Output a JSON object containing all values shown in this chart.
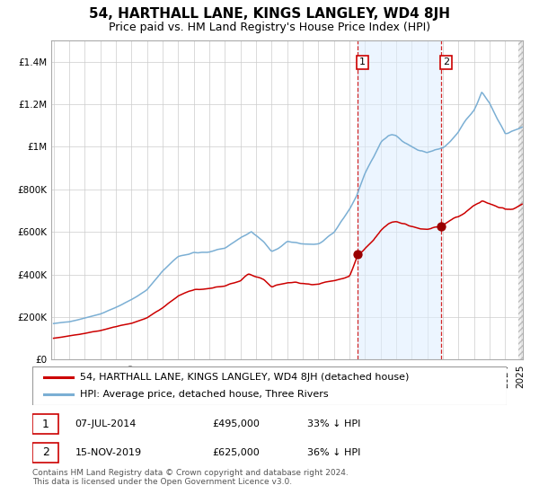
{
  "title": "54, HARTHALL LANE, KINGS LANGLEY, WD4 8JH",
  "subtitle": "Price paid vs. HM Land Registry's House Price Index (HPI)",
  "ylim": [
    0,
    1500000
  ],
  "yticks": [
    0,
    200000,
    400000,
    600000,
    800000,
    1000000,
    1200000,
    1400000
  ],
  "ytick_labels": [
    "£0",
    "£200K",
    "£400K",
    "£600K",
    "£800K",
    "£1M",
    "£1.2M",
    "£1.4M"
  ],
  "date_start": 1995.0,
  "date_end": 2025.08,
  "purchase1_date": 2014.52,
  "purchase1_price": 495000,
  "purchase2_date": 2019.88,
  "purchase2_price": 625000,
  "hpi_color": "#7bafd4",
  "price_color": "#cc0000",
  "purchase_dot_color": "#990000",
  "shaded_color": "#ddeeff",
  "grid_color": "#cccccc",
  "legend_label1": "54, HARTHALL LANE, KINGS LANGLEY, WD4 8JH (detached house)",
  "legend_label2": "HPI: Average price, detached house, Three Rivers",
  "annotation1_date": "07-JUL-2014",
  "annotation1_price": "£495,000",
  "annotation1_pct": "33% ↓ HPI",
  "annotation2_date": "15-NOV-2019",
  "annotation2_price": "£625,000",
  "annotation2_pct": "36% ↓ HPI",
  "footer": "Contains HM Land Registry data © Crown copyright and database right 2024.\nThis data is licensed under the Open Government Licence v3.0.",
  "title_fontsize": 11,
  "subtitle_fontsize": 9,
  "tick_fontsize": 7.5,
  "legend_fontsize": 8,
  "annotation_fontsize": 8
}
